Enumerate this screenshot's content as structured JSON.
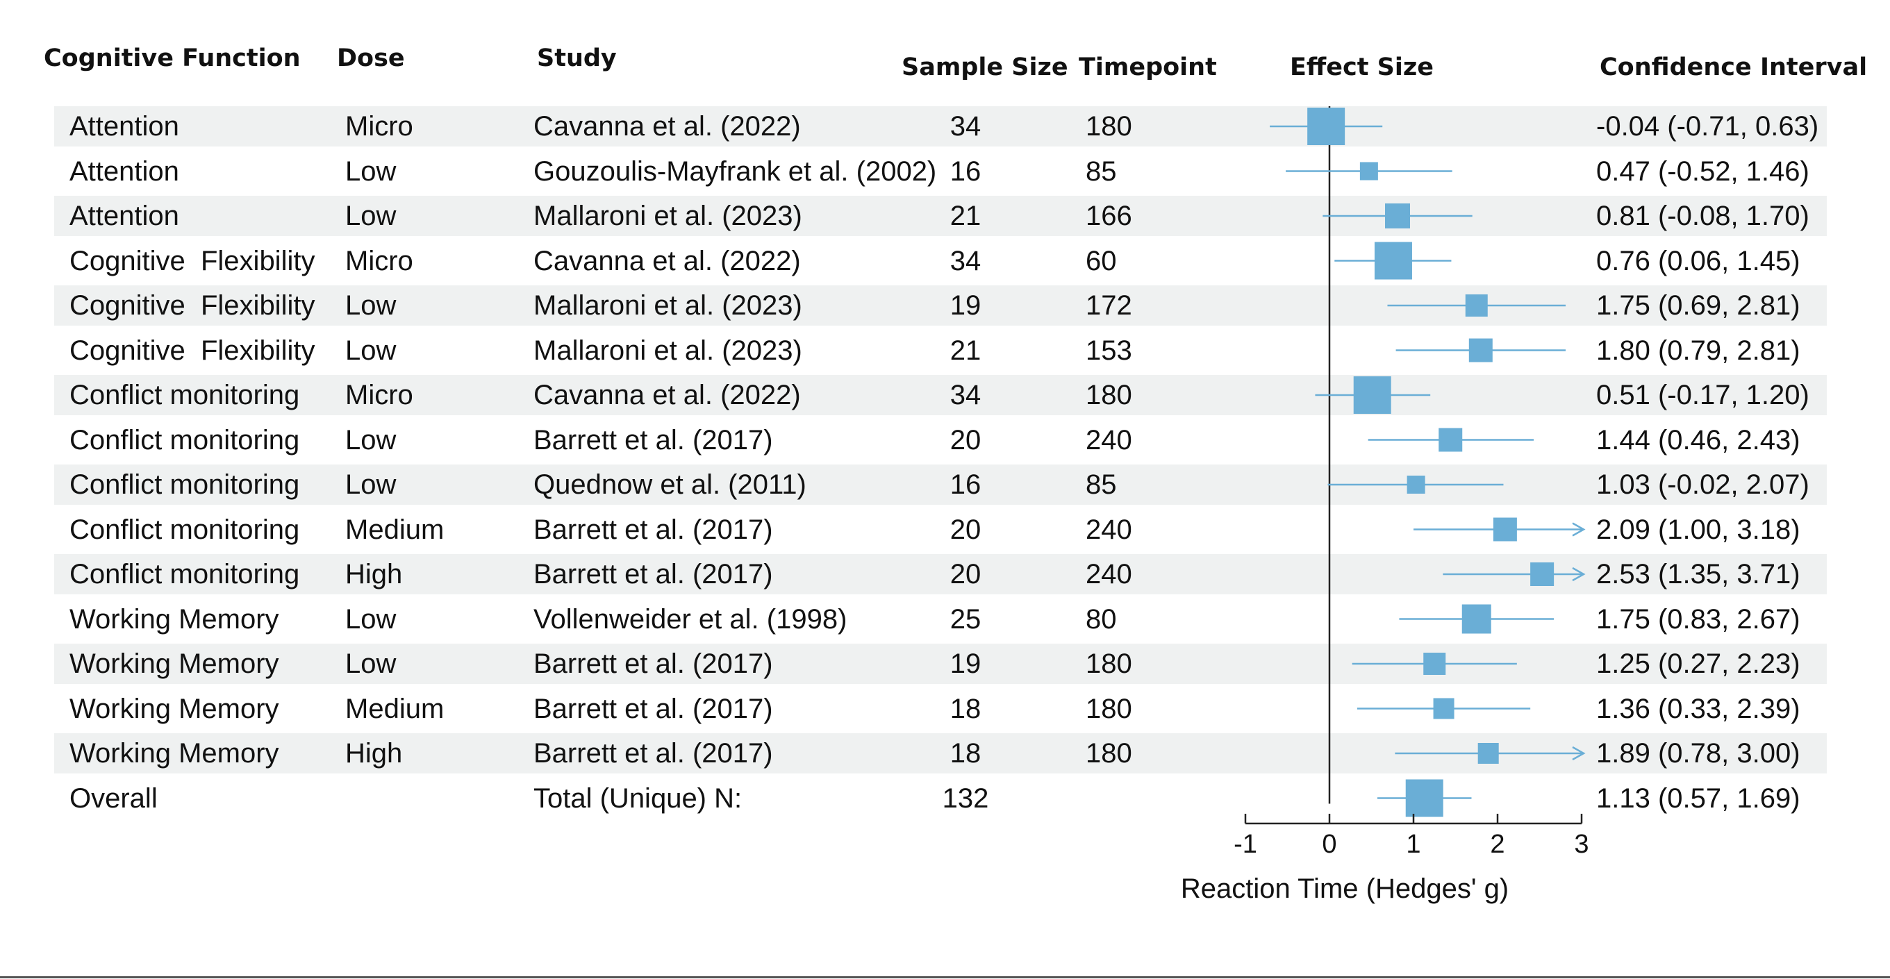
{
  "headers": {
    "function": "Cognitive Function",
    "dose": "Dose",
    "study": "Study",
    "sample": "Sample Size",
    "timepoint": "Timepoint",
    "effect": "Effect Size",
    "ci": "Confidence Interval"
  },
  "colors": {
    "marker": "#6aaed6",
    "band": "#eff1f1",
    "text": "#111111",
    "axis": "#222222"
  },
  "chart_data": {
    "type": "forest",
    "xlabel": "Reaction Time (Hedges' g)",
    "xlim": [
      -1,
      3
    ],
    "ticks": [
      -1,
      0,
      1,
      2,
      3
    ],
    "tick_labels": [
      "-1",
      "0",
      "1",
      "2",
      "3"
    ],
    "reference_line": 0,
    "rows": [
      {
        "function": "Attention",
        "dose": "Micro",
        "study": "Cavanna et al. (2022)",
        "n": "34",
        "timepoint": "180",
        "effect": -0.04,
        "lower": -0.71,
        "upper": 0.63,
        "ci_text": "-0.04 (-0.71, 0.63)",
        "arrow": false,
        "shaded": true,
        "weight": 1.0
      },
      {
        "function": "Attention",
        "dose": "Low",
        "study": "Gouzoulis-Mayfrank et al. (2002)",
        "n": "16",
        "timepoint": "85",
        "effect": 0.47,
        "lower": -0.52,
        "upper": 1.46,
        "ci_text": "0.47 (-0.52, 1.46)",
        "arrow": false,
        "shaded": false,
        "weight": 0.3
      },
      {
        "function": "Attention",
        "dose": "Low",
        "study": "Mallaroni et al. (2023)",
        "n": "21",
        "timepoint": "166",
        "effect": 0.81,
        "lower": -0.08,
        "upper": 1.7,
        "ci_text": "0.81 (-0.08, 1.70)",
        "arrow": false,
        "shaded": true,
        "weight": 0.55
      },
      {
        "function": "Cognitive  Flexibility",
        "dose": "Micro",
        "study": "Cavanna et al. (2022)",
        "n": "34",
        "timepoint": "60",
        "effect": 0.76,
        "lower": 0.06,
        "upper": 1.45,
        "ci_text": "0.76 (0.06, 1.45)",
        "arrow": false,
        "shaded": false,
        "weight": 1.0
      },
      {
        "function": "Cognitive  Flexibility",
        "dose": "Low",
        "study": "Mallaroni et al. (2023)",
        "n": "19",
        "timepoint": "172",
        "effect": 1.75,
        "lower": 0.69,
        "upper": 2.81,
        "ci_text": "1.75 (0.69, 2.81)",
        "arrow": false,
        "shaded": true,
        "weight": 0.45
      },
      {
        "function": "Cognitive  Flexibility",
        "dose": "Low",
        "study": "Mallaroni et al. (2023)",
        "n": "21",
        "timepoint": "153",
        "effect": 1.8,
        "lower": 0.79,
        "upper": 2.81,
        "ci_text": "1.80 (0.79, 2.81)",
        "arrow": false,
        "shaded": false,
        "weight": 0.5
      },
      {
        "function": "Conflict monitoring",
        "dose": "Micro",
        "study": "Cavanna et al. (2022)",
        "n": "34",
        "timepoint": "180",
        "effect": 0.51,
        "lower": -0.17,
        "upper": 1.2,
        "ci_text": "0.51 (-0.17, 1.20)",
        "arrow": false,
        "shaded": true,
        "weight": 1.0
      },
      {
        "function": "Conflict monitoring",
        "dose": "Low",
        "study": "Barrett et al. (2017)",
        "n": "20",
        "timepoint": "240",
        "effect": 1.44,
        "lower": 0.46,
        "upper": 2.43,
        "ci_text": "1.44 (0.46, 2.43)",
        "arrow": false,
        "shaded": false,
        "weight": 0.5
      },
      {
        "function": "Conflict monitoring",
        "dose": "Low",
        "study": "Quednow et al. (2011)",
        "n": "16",
        "timepoint": "85",
        "effect": 1.03,
        "lower": -0.02,
        "upper": 2.07,
        "ci_text": "1.03 (-0.02, 2.07)",
        "arrow": false,
        "shaded": true,
        "weight": 0.3
      },
      {
        "function": "Conflict monitoring",
        "dose": "Medium",
        "study": "Barrett et al. (2017)",
        "n": "20",
        "timepoint": "240",
        "effect": 2.09,
        "lower": 1.0,
        "upper": 3.18,
        "ci_text": "2.09 (1.00, 3.18)",
        "arrow": true,
        "shaded": false,
        "weight": 0.5
      },
      {
        "function": "Conflict monitoring",
        "dose": "High",
        "study": "Barrett et al. (2017)",
        "n": "20",
        "timepoint": "240",
        "effect": 2.53,
        "lower": 1.35,
        "upper": 3.71,
        "ci_text": "2.53 (1.35, 3.71)",
        "arrow": true,
        "shaded": true,
        "weight": 0.5
      },
      {
        "function": "Working Memory",
        "dose": "Low",
        "study": "Vollenweider et al. (1998)",
        "n": "25",
        "timepoint": "80",
        "effect": 1.75,
        "lower": 0.83,
        "upper": 2.67,
        "ci_text": "1.75 (0.83, 2.67)",
        "arrow": false,
        "shaded": false,
        "weight": 0.7
      },
      {
        "function": "Working Memory",
        "dose": "Low",
        "study": "Barrett et al. (2017)",
        "n": "19",
        "timepoint": "180",
        "effect": 1.25,
        "lower": 0.27,
        "upper": 2.23,
        "ci_text": "1.25 (0.27, 2.23)",
        "arrow": false,
        "shaded": true,
        "weight": 0.45
      },
      {
        "function": "Working Memory",
        "dose": "Medium",
        "study": "Barrett et al. (2017)",
        "n": "18",
        "timepoint": "180",
        "effect": 1.36,
        "lower": 0.33,
        "upper": 2.39,
        "ci_text": "1.36 (0.33, 2.39)",
        "arrow": false,
        "shaded": false,
        "weight": 0.4
      },
      {
        "function": "Working Memory",
        "dose": "High",
        "study": "Barrett et al. (2017)",
        "n": "18",
        "timepoint": "180",
        "effect": 1.89,
        "lower": 0.78,
        "upper": 3.0,
        "ci_text": "1.89 (0.78, 3.00)",
        "arrow": true,
        "shaded": true,
        "weight": 0.4
      },
      {
        "function": "Overall",
        "dose": "",
        "study": "Total (Unique) N:",
        "n": "132",
        "timepoint": "",
        "effect": 1.13,
        "lower": 0.57,
        "upper": 1.69,
        "ci_text": "1.13 (0.57, 1.69)",
        "arrow": false,
        "shaded": false,
        "weight": 1.0
      }
    ]
  }
}
